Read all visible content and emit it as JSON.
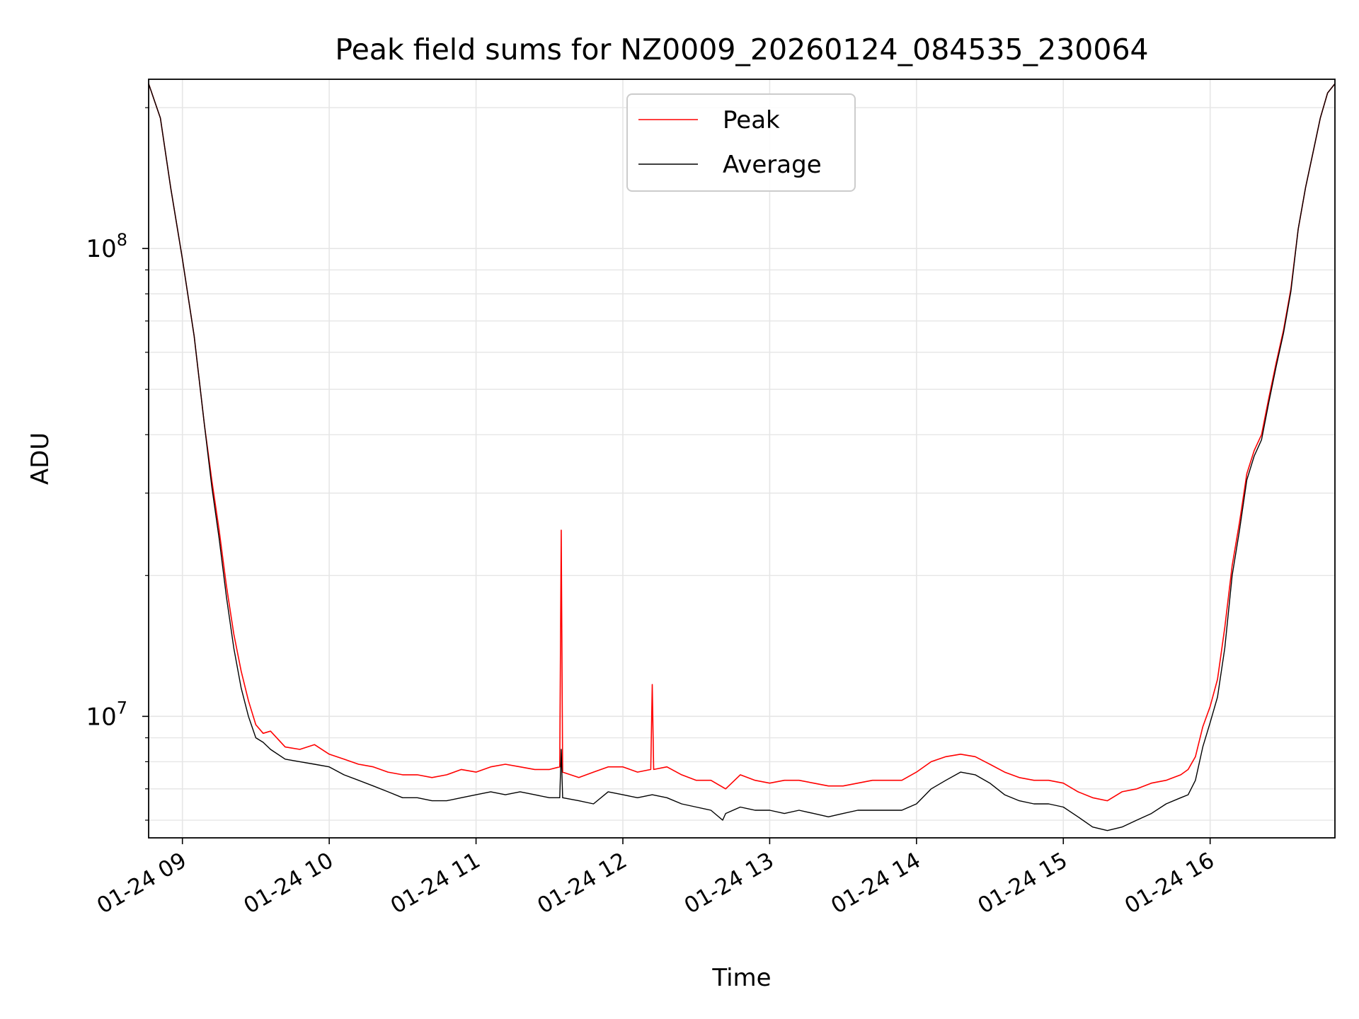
{
  "chart_data": {
    "type": "line",
    "title": "Peak field sums for NZ0009_20260124_084535_230064",
    "xlabel": "Time",
    "ylabel": "ADU",
    "yscale": "log",
    "ylim": [
      5500000,
      230000000
    ],
    "xlim": [
      8.77,
      16.85
    ],
    "grid": true,
    "legend_position": "top-center",
    "x_ticks": [
      {
        "value": 9,
        "label": "01-24 09"
      },
      {
        "value": 10,
        "label": "01-24 10"
      },
      {
        "value": 11,
        "label": "01-24 11"
      },
      {
        "value": 12,
        "label": "01-24 12"
      },
      {
        "value": 13,
        "label": "01-24 13"
      },
      {
        "value": 14,
        "label": "01-24 14"
      },
      {
        "value": 15,
        "label": "01-24 15"
      },
      {
        "value": 16,
        "label": "01-24 16"
      }
    ],
    "y_major_ticks": [
      {
        "value": 10000000,
        "base": "10",
        "exp": "7"
      },
      {
        "value": 100000000,
        "base": "10",
        "exp": "8"
      }
    ],
    "y_minor_ticks": [
      6000000,
      7000000,
      8000000,
      9000000,
      20000000,
      30000000,
      40000000,
      50000000,
      60000000,
      70000000,
      80000000,
      90000000,
      200000000
    ],
    "series": [
      {
        "name": "Peak",
        "color": "#ff0000",
        "x": [
          8.77,
          8.85,
          8.92,
          9.0,
          9.08,
          9.15,
          9.2,
          9.25,
          9.3,
          9.35,
          9.4,
          9.45,
          9.5,
          9.55,
          9.6,
          9.7,
          9.8,
          9.9,
          10.0,
          10.1,
          10.2,
          10.3,
          10.4,
          10.5,
          10.6,
          10.7,
          10.8,
          10.9,
          11.0,
          11.1,
          11.2,
          11.3,
          11.4,
          11.5,
          11.57,
          11.58,
          11.59,
          11.7,
          11.8,
          11.9,
          12.0,
          12.1,
          12.19,
          12.2,
          12.21,
          12.3,
          12.4,
          12.5,
          12.6,
          12.7,
          12.8,
          12.9,
          13.0,
          13.1,
          13.2,
          13.3,
          13.4,
          13.5,
          13.6,
          13.7,
          13.8,
          13.9,
          14.0,
          14.1,
          14.2,
          14.3,
          14.4,
          14.5,
          14.6,
          14.7,
          14.8,
          14.9,
          15.0,
          15.1,
          15.2,
          15.3,
          15.4,
          15.5,
          15.6,
          15.7,
          15.8,
          15.85,
          15.9,
          15.95,
          16.0,
          16.05,
          16.1,
          16.15,
          16.2,
          16.25,
          16.3,
          16.35,
          16.4,
          16.45,
          16.5,
          16.55,
          16.6,
          16.65,
          16.7,
          16.75,
          16.8,
          16.85
        ],
        "y": [
          225000000,
          190000000,
          135000000,
          95000000,
          65000000,
          42000000,
          32000000,
          25000000,
          19000000,
          15000000,
          12500000,
          10800000,
          9600000,
          9200000,
          9300000,
          8600000,
          8500000,
          8700000,
          8300000,
          8100000,
          7900000,
          7800000,
          7600000,
          7500000,
          7500000,
          7400000,
          7500000,
          7700000,
          7600000,
          7800000,
          7900000,
          7800000,
          7700000,
          7700000,
          7800000,
          25000000,
          7600000,
          7400000,
          7600000,
          7800000,
          7800000,
          7600000,
          7700000,
          11700000,
          7700000,
          7800000,
          7500000,
          7300000,
          7300000,
          7000000,
          7500000,
          7300000,
          7200000,
          7300000,
          7300000,
          7200000,
          7100000,
          7100000,
          7200000,
          7300000,
          7300000,
          7300000,
          7600000,
          8000000,
          8200000,
          8300000,
          8200000,
          7900000,
          7600000,
          7400000,
          7300000,
          7300000,
          7200000,
          6900000,
          6700000,
          6600000,
          6900000,
          7000000,
          7200000,
          7300000,
          7500000,
          7700000,
          8200000,
          9500000,
          10500000,
          12000000,
          15500000,
          21000000,
          26000000,
          33000000,
          37000000,
          40000000,
          48000000,
          57000000,
          67000000,
          82000000,
          110000000,
          135000000,
          160000000,
          190000000,
          215000000,
          225000000
        ]
      },
      {
        "name": "Average",
        "color": "#000000",
        "x": [
          8.77,
          8.85,
          8.92,
          9.0,
          9.08,
          9.15,
          9.2,
          9.25,
          9.3,
          9.35,
          9.4,
          9.45,
          9.5,
          9.55,
          9.6,
          9.7,
          9.8,
          9.9,
          10.0,
          10.1,
          10.2,
          10.3,
          10.4,
          10.5,
          10.6,
          10.7,
          10.8,
          10.9,
          11.0,
          11.1,
          11.2,
          11.3,
          11.4,
          11.5,
          11.57,
          11.58,
          11.59,
          11.7,
          11.8,
          11.9,
          12.0,
          12.1,
          12.2,
          12.3,
          12.4,
          12.5,
          12.6,
          12.68,
          12.7,
          12.8,
          12.9,
          13.0,
          13.1,
          13.2,
          13.3,
          13.4,
          13.5,
          13.6,
          13.7,
          13.8,
          13.9,
          14.0,
          14.1,
          14.2,
          14.3,
          14.4,
          14.5,
          14.6,
          14.7,
          14.8,
          14.9,
          15.0,
          15.1,
          15.2,
          15.3,
          15.4,
          15.5,
          15.6,
          15.7,
          15.8,
          15.85,
          15.9,
          15.95,
          16.0,
          16.05,
          16.1,
          16.15,
          16.2,
          16.25,
          16.3,
          16.35,
          16.4,
          16.45,
          16.5,
          16.55,
          16.6,
          16.65,
          16.7,
          16.75,
          16.8,
          16.85
        ],
        "y": [
          225000000,
          190000000,
          135000000,
          95000000,
          65000000,
          42000000,
          31000000,
          24000000,
          18000000,
          14000000,
          11500000,
          10000000,
          9000000,
          8800000,
          8500000,
          8100000,
          8000000,
          7900000,
          7800000,
          7500000,
          7300000,
          7100000,
          6900000,
          6700000,
          6700000,
          6600000,
          6600000,
          6700000,
          6800000,
          6900000,
          6800000,
          6900000,
          6800000,
          6700000,
          6700000,
          8500000,
          6700000,
          6600000,
          6500000,
          6900000,
          6800000,
          6700000,
          6800000,
          6700000,
          6500000,
          6400000,
          6300000,
          6000000,
          6200000,
          6400000,
          6300000,
          6300000,
          6200000,
          6300000,
          6200000,
          6100000,
          6200000,
          6300000,
          6300000,
          6300000,
          6300000,
          6500000,
          7000000,
          7300000,
          7600000,
          7500000,
          7200000,
          6800000,
          6600000,
          6500000,
          6500000,
          6400000,
          6100000,
          5800000,
          5700000,
          5800000,
          6000000,
          6200000,
          6500000,
          6700000,
          6800000,
          7300000,
          8600000,
          9700000,
          11000000,
          14000000,
          20000000,
          25000000,
          32000000,
          36000000,
          39000000,
          47000000,
          56000000,
          66000000,
          81000000,
          110000000,
          135000000,
          160000000,
          190000000,
          215000000,
          225000000
        ]
      }
    ]
  }
}
